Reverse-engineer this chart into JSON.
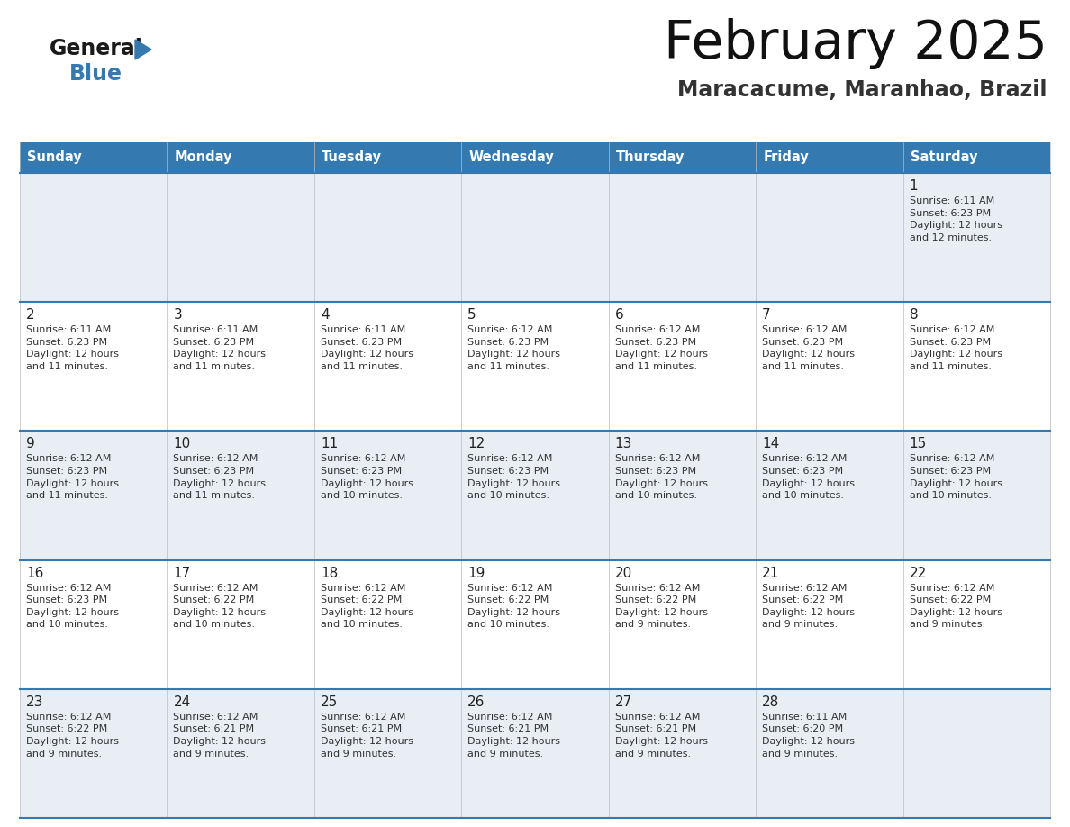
{
  "title": "February 2025",
  "subtitle": "Maracacume, Maranhao, Brazil",
  "header_color": "#3579b1",
  "header_text_color": "#ffffff",
  "cell_bg_even": "#e8eef4",
  "cell_bg_odd": "#ffffff",
  "border_color": "#3579b1",
  "text_color": "#333333",
  "day_num_color": "#222222",
  "day_headers": [
    "Sunday",
    "Monday",
    "Tuesday",
    "Wednesday",
    "Thursday",
    "Friday",
    "Saturday"
  ],
  "weeks": [
    [
      {
        "day": null,
        "info": null
      },
      {
        "day": null,
        "info": null
      },
      {
        "day": null,
        "info": null
      },
      {
        "day": null,
        "info": null
      },
      {
        "day": null,
        "info": null
      },
      {
        "day": null,
        "info": null
      },
      {
        "day": 1,
        "info": "Sunrise: 6:11 AM\nSunset: 6:23 PM\nDaylight: 12 hours\nand 12 minutes."
      }
    ],
    [
      {
        "day": 2,
        "info": "Sunrise: 6:11 AM\nSunset: 6:23 PM\nDaylight: 12 hours\nand 11 minutes."
      },
      {
        "day": 3,
        "info": "Sunrise: 6:11 AM\nSunset: 6:23 PM\nDaylight: 12 hours\nand 11 minutes."
      },
      {
        "day": 4,
        "info": "Sunrise: 6:11 AM\nSunset: 6:23 PM\nDaylight: 12 hours\nand 11 minutes."
      },
      {
        "day": 5,
        "info": "Sunrise: 6:12 AM\nSunset: 6:23 PM\nDaylight: 12 hours\nand 11 minutes."
      },
      {
        "day": 6,
        "info": "Sunrise: 6:12 AM\nSunset: 6:23 PM\nDaylight: 12 hours\nand 11 minutes."
      },
      {
        "day": 7,
        "info": "Sunrise: 6:12 AM\nSunset: 6:23 PM\nDaylight: 12 hours\nand 11 minutes."
      },
      {
        "day": 8,
        "info": "Sunrise: 6:12 AM\nSunset: 6:23 PM\nDaylight: 12 hours\nand 11 minutes."
      }
    ],
    [
      {
        "day": 9,
        "info": "Sunrise: 6:12 AM\nSunset: 6:23 PM\nDaylight: 12 hours\nand 11 minutes."
      },
      {
        "day": 10,
        "info": "Sunrise: 6:12 AM\nSunset: 6:23 PM\nDaylight: 12 hours\nand 11 minutes."
      },
      {
        "day": 11,
        "info": "Sunrise: 6:12 AM\nSunset: 6:23 PM\nDaylight: 12 hours\nand 10 minutes."
      },
      {
        "day": 12,
        "info": "Sunrise: 6:12 AM\nSunset: 6:23 PM\nDaylight: 12 hours\nand 10 minutes."
      },
      {
        "day": 13,
        "info": "Sunrise: 6:12 AM\nSunset: 6:23 PM\nDaylight: 12 hours\nand 10 minutes."
      },
      {
        "day": 14,
        "info": "Sunrise: 6:12 AM\nSunset: 6:23 PM\nDaylight: 12 hours\nand 10 minutes."
      },
      {
        "day": 15,
        "info": "Sunrise: 6:12 AM\nSunset: 6:23 PM\nDaylight: 12 hours\nand 10 minutes."
      }
    ],
    [
      {
        "day": 16,
        "info": "Sunrise: 6:12 AM\nSunset: 6:23 PM\nDaylight: 12 hours\nand 10 minutes."
      },
      {
        "day": 17,
        "info": "Sunrise: 6:12 AM\nSunset: 6:22 PM\nDaylight: 12 hours\nand 10 minutes."
      },
      {
        "day": 18,
        "info": "Sunrise: 6:12 AM\nSunset: 6:22 PM\nDaylight: 12 hours\nand 10 minutes."
      },
      {
        "day": 19,
        "info": "Sunrise: 6:12 AM\nSunset: 6:22 PM\nDaylight: 12 hours\nand 10 minutes."
      },
      {
        "day": 20,
        "info": "Sunrise: 6:12 AM\nSunset: 6:22 PM\nDaylight: 12 hours\nand 9 minutes."
      },
      {
        "day": 21,
        "info": "Sunrise: 6:12 AM\nSunset: 6:22 PM\nDaylight: 12 hours\nand 9 minutes."
      },
      {
        "day": 22,
        "info": "Sunrise: 6:12 AM\nSunset: 6:22 PM\nDaylight: 12 hours\nand 9 minutes."
      }
    ],
    [
      {
        "day": 23,
        "info": "Sunrise: 6:12 AM\nSunset: 6:22 PM\nDaylight: 12 hours\nand 9 minutes."
      },
      {
        "day": 24,
        "info": "Sunrise: 6:12 AM\nSunset: 6:21 PM\nDaylight: 12 hours\nand 9 minutes."
      },
      {
        "day": 25,
        "info": "Sunrise: 6:12 AM\nSunset: 6:21 PM\nDaylight: 12 hours\nand 9 minutes."
      },
      {
        "day": 26,
        "info": "Sunrise: 6:12 AM\nSunset: 6:21 PM\nDaylight: 12 hours\nand 9 minutes."
      },
      {
        "day": 27,
        "info": "Sunrise: 6:12 AM\nSunset: 6:21 PM\nDaylight: 12 hours\nand 9 minutes."
      },
      {
        "day": 28,
        "info": "Sunrise: 6:11 AM\nSunset: 6:20 PM\nDaylight: 12 hours\nand 9 minutes."
      },
      {
        "day": null,
        "info": null
      }
    ]
  ],
  "n_weeks": 5,
  "n_days": 7
}
